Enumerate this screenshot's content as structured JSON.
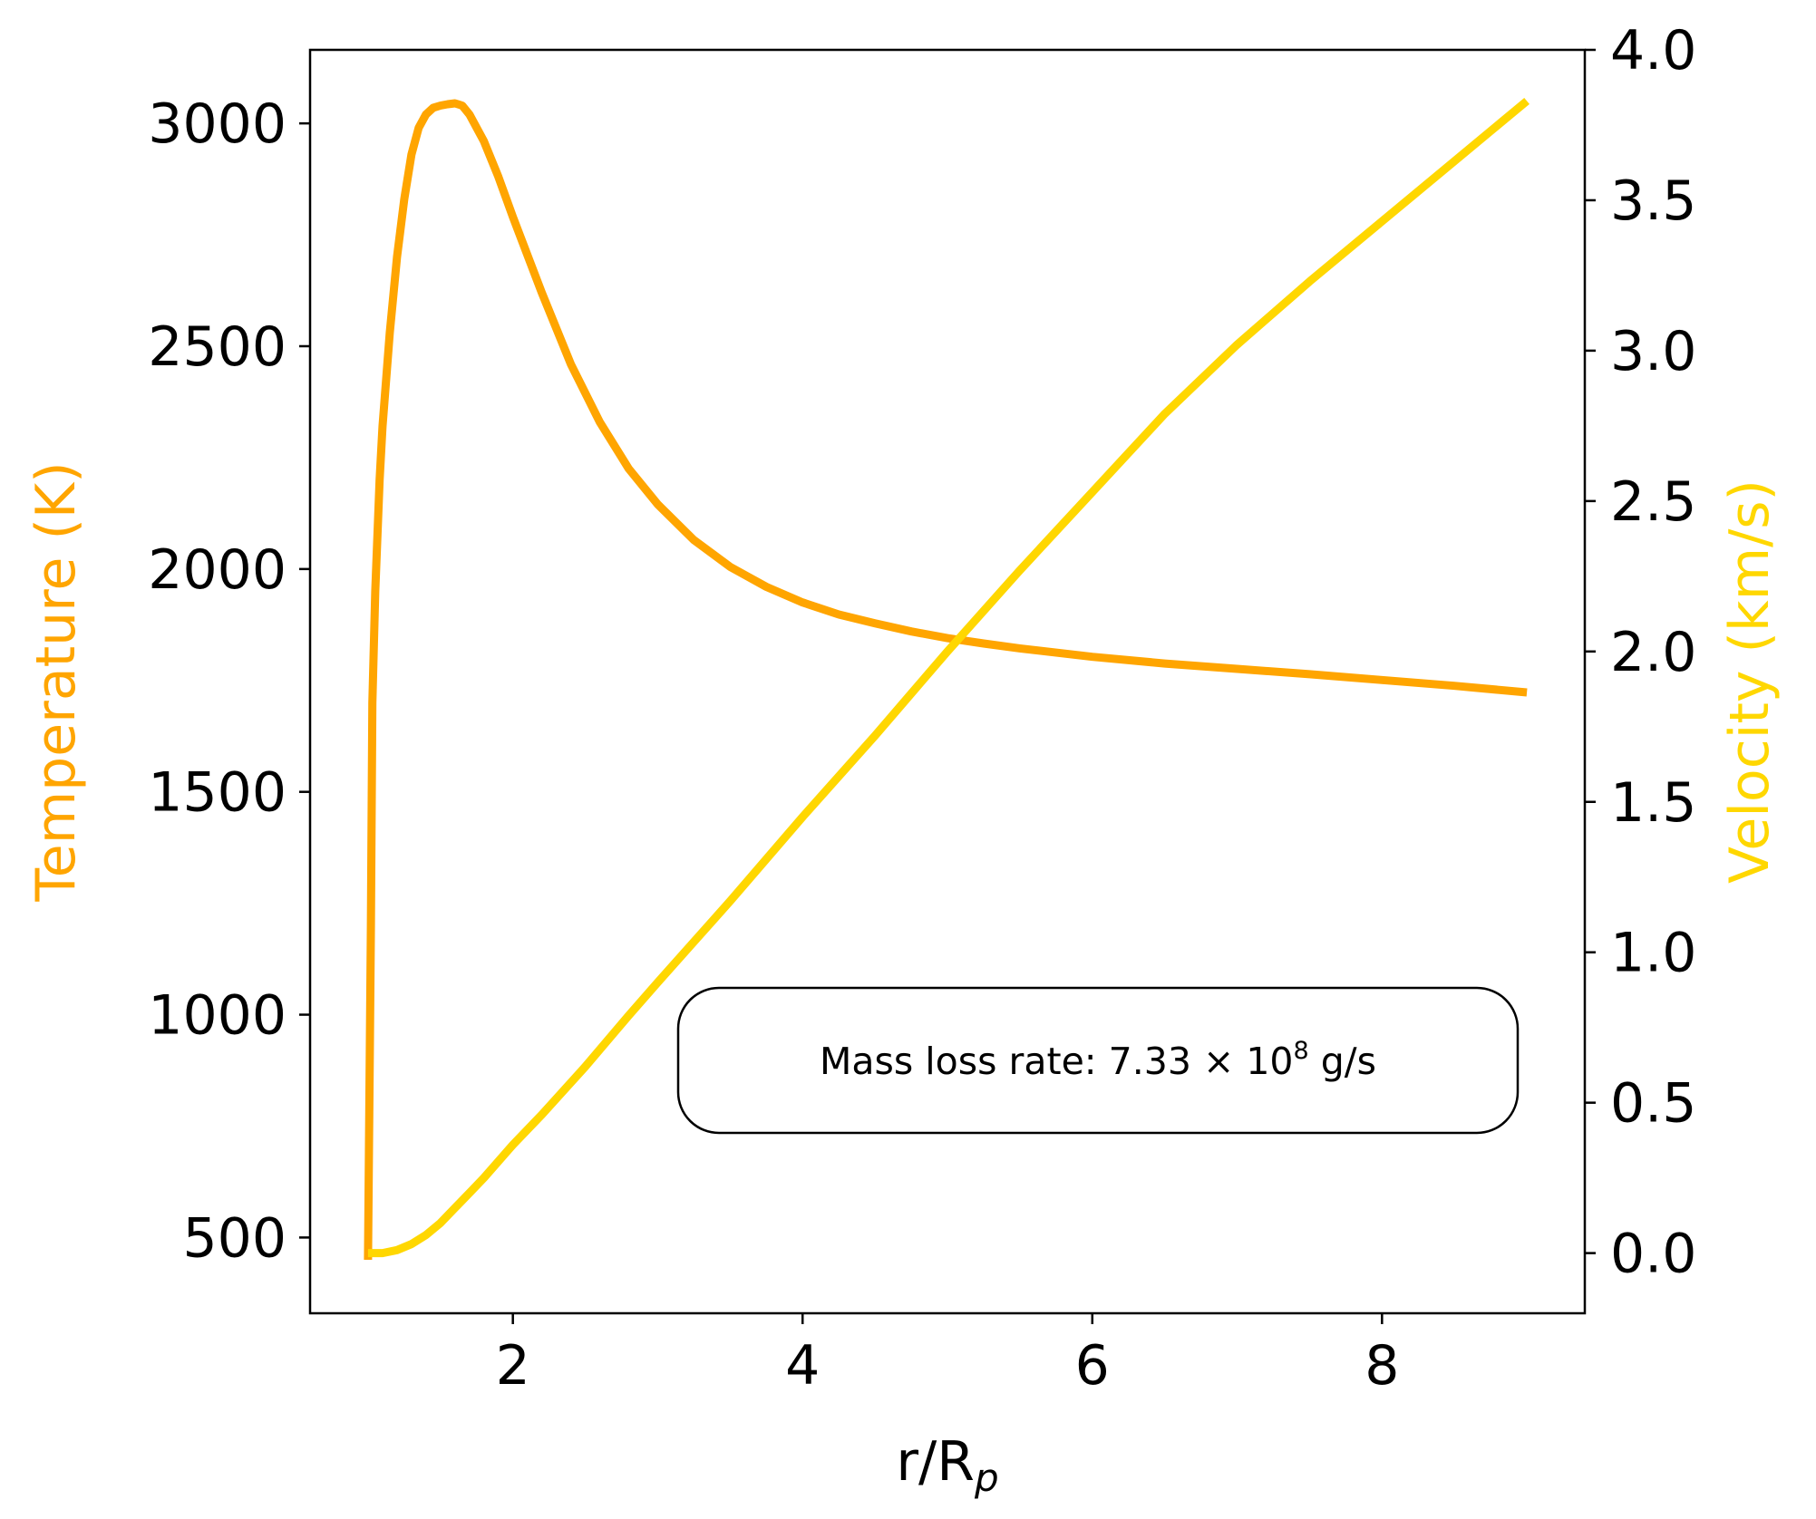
{
  "chart_data": {
    "type": "line",
    "title": "",
    "xlabel": "r/R",
    "xlabel_sub": "p",
    "ylabel_left": "Temperature (K)",
    "ylabel_right": "Velocity (km/s)",
    "xlim": [
      0.6,
      9.4
    ],
    "ylim_left": [
      330,
      3165
    ],
    "ylim_right": [
      -0.2,
      4.0
    ],
    "x_ticks": [
      2,
      4,
      6,
      8
    ],
    "y_left_ticks": [
      500,
      1000,
      1500,
      2000,
      2500,
      3000
    ],
    "y_right_ticks": [
      "0.0",
      "0.5",
      "1.0",
      "1.5",
      "2.0",
      "2.5",
      "3.0",
      "3.5",
      "4.0"
    ],
    "grid": false,
    "colors": {
      "temperature": "#FFA500",
      "velocity": "#FFD700",
      "axes": "#000000"
    },
    "annotation": {
      "prefix": "Mass loss rate: 7.33 × 10",
      "exponent": "8",
      "suffix": " g/s"
    },
    "series": [
      {
        "axis": "left",
        "color": "#FFA500",
        "x": [
          1.0,
          1.02,
          1.03,
          1.05,
          1.08,
          1.1,
          1.15,
          1.2,
          1.25,
          1.3,
          1.35,
          1.4,
          1.45,
          1.5,
          1.55,
          1.6,
          1.65,
          1.7,
          1.8,
          1.9,
          2.0,
          2.2,
          2.4,
          2.6,
          2.8,
          3.0,
          3.25,
          3.5,
          3.75,
          4.0,
          4.25,
          4.5,
          4.75,
          5.0,
          5.25,
          5.5,
          6.0,
          6.5,
          7.0,
          7.5,
          8.0,
          8.5,
          9.0
        ],
        "y": [
          450,
          1200,
          1700,
          1950,
          2200,
          2320,
          2530,
          2700,
          2830,
          2930,
          2990,
          3020,
          3035,
          3040,
          3043,
          3045,
          3040,
          3020,
          2960,
          2880,
          2790,
          2620,
          2460,
          2330,
          2225,
          2145,
          2065,
          2005,
          1960,
          1925,
          1898,
          1878,
          1860,
          1845,
          1833,
          1822,
          1803,
          1788,
          1776,
          1764,
          1751,
          1738,
          1723
        ]
      },
      {
        "axis": "right",
        "color": "#FFD700",
        "x": [
          1.0,
          1.1,
          1.2,
          1.3,
          1.4,
          1.5,
          1.6,
          1.7,
          1.8,
          2.0,
          2.2,
          2.5,
          2.8,
          3.0,
          3.5,
          4.0,
          4.5,
          5.0,
          5.5,
          6.0,
          6.5,
          7.0,
          7.5,
          8.0,
          8.5,
          9.0
        ],
        "y": [
          0.0,
          0.0,
          0.01,
          0.03,
          0.06,
          0.1,
          0.15,
          0.2,
          0.25,
          0.36,
          0.46,
          0.62,
          0.79,
          0.9,
          1.17,
          1.45,
          1.72,
          2.0,
          2.27,
          2.53,
          2.79,
          3.02,
          3.23,
          3.43,
          3.63,
          3.83
        ]
      }
    ]
  }
}
